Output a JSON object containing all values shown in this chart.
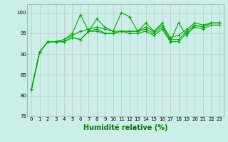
{
  "title": "",
  "xlabel": "Humidité relative (%)",
  "ylabel": "",
  "bg_color": "#cceee8",
  "grid_color": "#bbbbbb",
  "line_color": "#00aa00",
  "xlim": [
    -0.5,
    23.5
  ],
  "ylim": [
    75,
    102
  ],
  "yticks": [
    75,
    80,
    85,
    90,
    95,
    100
  ],
  "xticks": [
    0,
    1,
    2,
    3,
    4,
    5,
    6,
    7,
    8,
    9,
    10,
    11,
    12,
    13,
    14,
    15,
    16,
    17,
    18,
    19,
    20,
    21,
    22,
    23
  ],
  "series": [
    [
      81.5,
      90.5,
      93.0,
      93.0,
      93.5,
      95.0,
      99.5,
      95.5,
      98.5,
      96.5,
      95.5,
      100.0,
      99.0,
      95.5,
      97.5,
      95.5,
      97.5,
      93.0,
      97.5,
      94.5,
      97.0,
      96.5,
      97.5,
      97.5
    ],
    [
      81.5,
      90.5,
      93.0,
      93.0,
      93.0,
      94.0,
      93.5,
      95.5,
      96.0,
      95.0,
      95.0,
      95.5,
      95.0,
      95.0,
      95.5,
      94.5,
      96.0,
      93.0,
      93.0,
      95.0,
      96.5,
      96.0,
      97.0,
      97.0
    ],
    [
      81.5,
      90.5,
      93.0,
      93.0,
      93.0,
      94.0,
      93.5,
      95.5,
      95.5,
      95.0,
      95.0,
      95.5,
      95.5,
      95.5,
      96.0,
      95.0,
      96.5,
      93.5,
      93.5,
      95.5,
      97.0,
      96.5,
      97.5,
      97.5
    ],
    [
      81.5,
      90.5,
      93.0,
      93.0,
      93.5,
      94.5,
      95.5,
      96.0,
      96.5,
      96.0,
      95.5,
      95.5,
      95.5,
      95.5,
      96.5,
      95.5,
      97.0,
      94.0,
      94.5,
      96.0,
      97.5,
      97.0,
      97.5,
      97.5
    ]
  ],
  "xlabel_fontsize": 7,
  "xlabel_color": "#007700",
  "tick_fontsize": 5,
  "lw": 0.8,
  "markersize": 3
}
